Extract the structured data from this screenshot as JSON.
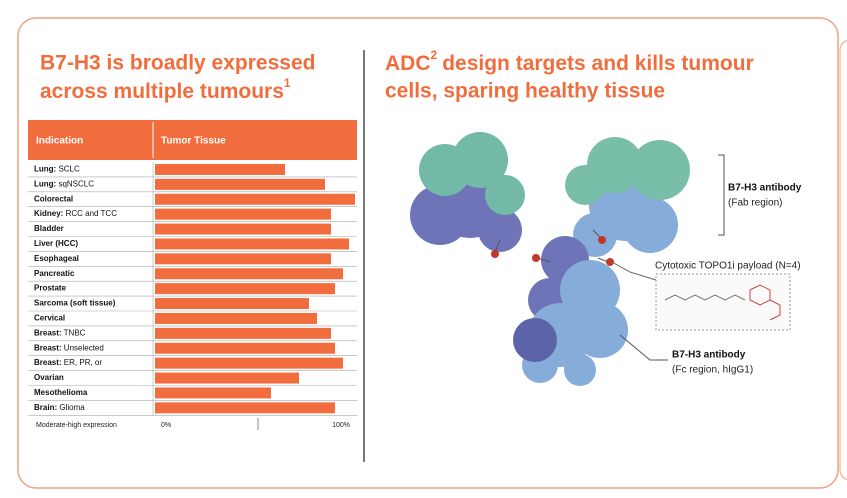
{
  "left_title": {
    "lines": [
      "B7-H3 is broadly expressed",
      "across multiple tumours"
    ],
    "sup": "1"
  },
  "right_title": {
    "lines": [
      "ADC",
      "design targets and kills tumour",
      "cells, sparing healthy tissue"
    ],
    "sup": "2"
  },
  "chart_data": {
    "type": "bar",
    "orientation": "horizontal",
    "color": "#f26d3d",
    "header": [
      "Indication",
      "Tumor Tissue"
    ],
    "categories": [
      "Lung: SCLC",
      "Lung: sqNSCLC",
      "Colorectal",
      "Kidney: RCC and TCC",
      "Bladder",
      "Liver (HCC)",
      "Esophageal",
      "Pancreatic",
      "Prostate",
      "Sarcoma (soft tissue)",
      "Cervical",
      "Breast: TNBC",
      "Breast: Unselected",
      "Breast: ER, PR, or",
      "Ovarian",
      "Mesothelioma",
      "Brain: Glioma"
    ],
    "values": [
      65,
      85,
      100,
      88,
      88,
      97,
      88,
      94,
      90,
      77,
      81,
      88,
      90,
      94,
      72,
      58,
      90
    ],
    "xlim": [
      0,
      100
    ],
    "xticks": [
      {
        "value": 0,
        "label": "0%"
      },
      {
        "value": 100,
        "label": "100%"
      }
    ],
    "x_label": "Moderate-high expression"
  },
  "diagram": {
    "fab_label": [
      "B7-H3 antibody",
      "(Fab region)"
    ],
    "payload_label": "Cytotoxic TOPO1i payload (N=4)",
    "fc_label": [
      "B7-H3 antibody",
      "(Fc region, hIgG1)"
    ]
  }
}
